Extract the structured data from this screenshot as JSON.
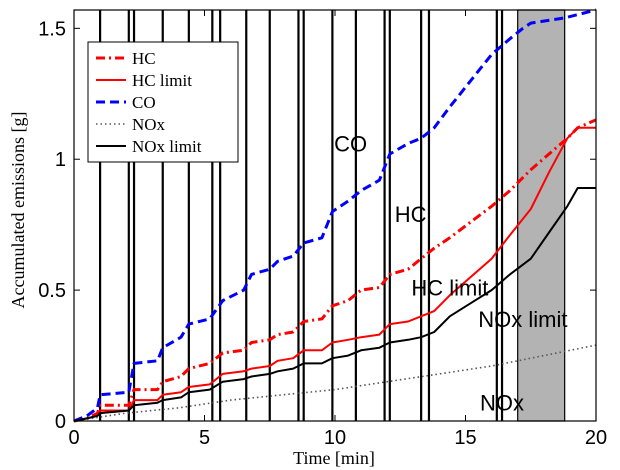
{
  "chart_data": {
    "type": "line",
    "xlabel": "Time [min]",
    "ylabel": "Accumulated emissions [g]",
    "xlim": [
      0,
      20
    ],
    "ylim": [
      0,
      1.57
    ],
    "xticks": [
      0,
      5,
      10,
      15,
      20
    ],
    "yticks": [
      0,
      0.5,
      1,
      1.5
    ],
    "xtick_labels": [
      "0",
      "5",
      "10",
      "15",
      "20"
    ],
    "ytick_labels": [
      "0",
      "0.5",
      "1",
      "1.5"
    ],
    "grid": false,
    "legend_position": "top-left",
    "series": [
      {
        "name": "HC",
        "color": "#ff0000",
        "style": "dashdot",
        "points": [
          [
            0,
            0
          ],
          [
            0.5,
            0.01
          ],
          [
            0.9,
            0.03
          ],
          [
            1.0,
            0.06
          ],
          [
            2.1,
            0.06
          ],
          [
            2.3,
            0.12
          ],
          [
            3.2,
            0.12
          ],
          [
            3.4,
            0.15
          ],
          [
            4.1,
            0.17
          ],
          [
            4.4,
            0.2
          ],
          [
            5.2,
            0.22
          ],
          [
            5.7,
            0.26
          ],
          [
            6.5,
            0.27
          ],
          [
            6.8,
            0.3
          ],
          [
            7.5,
            0.31
          ],
          [
            7.8,
            0.33
          ],
          [
            8.4,
            0.34
          ],
          [
            8.8,
            0.38
          ],
          [
            9.5,
            0.39
          ],
          [
            9.9,
            0.44
          ],
          [
            10.5,
            0.46
          ],
          [
            11.0,
            0.5
          ],
          [
            11.7,
            0.51
          ],
          [
            12.1,
            0.56
          ],
          [
            12.8,
            0.58
          ],
          [
            13.3,
            0.62
          ],
          [
            13.8,
            0.66
          ],
          [
            14.4,
            0.7
          ],
          [
            15.2,
            0.76
          ],
          [
            16.0,
            0.82
          ],
          [
            16.7,
            0.88
          ],
          [
            17.5,
            0.96
          ],
          [
            18.2,
            1.02
          ],
          [
            18.9,
            1.08
          ],
          [
            19.3,
            1.12
          ],
          [
            20,
            1.15
          ]
        ]
      },
      {
        "name": "HC limit",
        "color": "#ff0000",
        "style": "solid",
        "points": [
          [
            0,
            0
          ],
          [
            0.5,
            0.01
          ],
          [
            0.9,
            0.02
          ],
          [
            1.0,
            0.04
          ],
          [
            2.1,
            0.04
          ],
          [
            2.3,
            0.08
          ],
          [
            3.2,
            0.08
          ],
          [
            3.4,
            0.1
          ],
          [
            4.1,
            0.11
          ],
          [
            4.4,
            0.13
          ],
          [
            5.2,
            0.14
          ],
          [
            5.7,
            0.18
          ],
          [
            6.5,
            0.19
          ],
          [
            6.8,
            0.2
          ],
          [
            7.5,
            0.21
          ],
          [
            7.8,
            0.23
          ],
          [
            8.4,
            0.24
          ],
          [
            8.8,
            0.27
          ],
          [
            9.5,
            0.27
          ],
          [
            9.9,
            0.3
          ],
          [
            10.5,
            0.31
          ],
          [
            11.0,
            0.32
          ],
          [
            11.7,
            0.33
          ],
          [
            12.1,
            0.37
          ],
          [
            12.8,
            0.38
          ],
          [
            13.3,
            0.4
          ],
          [
            13.8,
            0.42
          ],
          [
            14.4,
            0.48
          ],
          [
            15.2,
            0.55
          ],
          [
            16.0,
            0.62
          ],
          [
            16.7,
            0.71
          ],
          [
            17.5,
            0.81
          ],
          [
            18.2,
            0.95
          ],
          [
            18.9,
            1.08
          ],
          [
            19.3,
            1.12
          ],
          [
            20,
            1.12
          ]
        ]
      },
      {
        "name": "CO",
        "color": "#0000ff",
        "style": "dashed",
        "points": [
          [
            0,
            0
          ],
          [
            0.5,
            0.02
          ],
          [
            0.9,
            0.05
          ],
          [
            1.0,
            0.1
          ],
          [
            2.1,
            0.11
          ],
          [
            2.3,
            0.22
          ],
          [
            3.2,
            0.23
          ],
          [
            3.4,
            0.28
          ],
          [
            4.1,
            0.32
          ],
          [
            4.4,
            0.37
          ],
          [
            5.2,
            0.39
          ],
          [
            5.7,
            0.46
          ],
          [
            6.5,
            0.5
          ],
          [
            6.8,
            0.56
          ],
          [
            7.5,
            0.58
          ],
          [
            7.8,
            0.61
          ],
          [
            8.4,
            0.63
          ],
          [
            8.8,
            0.68
          ],
          [
            9.5,
            0.7
          ],
          [
            9.9,
            0.8
          ],
          [
            10.5,
            0.84
          ],
          [
            11.0,
            0.88
          ],
          [
            11.7,
            0.92
          ],
          [
            12.1,
            1.02
          ],
          [
            12.8,
            1.06
          ],
          [
            13.3,
            1.08
          ],
          [
            13.8,
            1.12
          ],
          [
            14.4,
            1.2
          ],
          [
            15.2,
            1.3
          ],
          [
            16.0,
            1.4
          ],
          [
            16.7,
            1.46
          ],
          [
            17.2,
            1.5
          ],
          [
            17.5,
            1.52
          ],
          [
            18.8,
            1.54
          ],
          [
            20,
            1.57
          ]
        ]
      },
      {
        "name": "NOx",
        "color": "#555555",
        "style": "dotted",
        "points": [
          [
            0,
            0
          ],
          [
            2,
            0.03
          ],
          [
            4,
            0.05
          ],
          [
            6,
            0.08
          ],
          [
            8,
            0.1
          ],
          [
            10,
            0.12
          ],
          [
            12,
            0.15
          ],
          [
            14,
            0.18
          ],
          [
            16,
            0.21
          ],
          [
            18,
            0.25
          ],
          [
            20,
            0.29
          ]
        ]
      },
      {
        "name": "NOx limit",
        "color": "#000000",
        "style": "solid",
        "points": [
          [
            0,
            0
          ],
          [
            0.5,
            0.01
          ],
          [
            0.9,
            0.02
          ],
          [
            1.0,
            0.03
          ],
          [
            2.1,
            0.04
          ],
          [
            2.3,
            0.06
          ],
          [
            3.2,
            0.07
          ],
          [
            3.4,
            0.08
          ],
          [
            4.1,
            0.09
          ],
          [
            4.4,
            0.11
          ],
          [
            5.2,
            0.12
          ],
          [
            5.7,
            0.15
          ],
          [
            6.5,
            0.16
          ],
          [
            6.8,
            0.17
          ],
          [
            7.5,
            0.18
          ],
          [
            7.8,
            0.19
          ],
          [
            8.4,
            0.2
          ],
          [
            8.8,
            0.22
          ],
          [
            9.5,
            0.22
          ],
          [
            9.9,
            0.24
          ],
          [
            10.5,
            0.25
          ],
          [
            11.0,
            0.27
          ],
          [
            11.7,
            0.28
          ],
          [
            12.1,
            0.3
          ],
          [
            12.8,
            0.31
          ],
          [
            13.3,
            0.32
          ],
          [
            13.8,
            0.34
          ],
          [
            14.4,
            0.4
          ],
          [
            15.2,
            0.45
          ],
          [
            16.0,
            0.5
          ],
          [
            16.7,
            0.56
          ],
          [
            17.5,
            0.62
          ],
          [
            18.2,
            0.72
          ],
          [
            18.9,
            0.82
          ],
          [
            19.3,
            0.89
          ],
          [
            20,
            0.89
          ]
        ]
      }
    ],
    "vertical_lines": [
      1.0,
      2.1,
      2.3,
      3.4,
      4.4,
      5.3,
      5.6,
      6.6,
      7.5,
      8.6,
      8.8,
      9.9,
      10.8,
      11.9,
      12.1,
      13.3,
      13.6,
      16.2,
      16.4
    ],
    "shaded_regions": [
      [
        17.0,
        18.8
      ]
    ],
    "annotations": [
      {
        "text": "CO",
        "x": 10.6,
        "y": 1.03
      },
      {
        "text": "HC",
        "x": 12.9,
        "y": 0.76
      },
      {
        "text": "HC limit",
        "x": 14.4,
        "y": 0.48
      },
      {
        "text": "NOx limit",
        "x": 17.2,
        "y": 0.36
      },
      {
        "text": "NOx",
        "x": 16.4,
        "y": 0.04
      }
    ]
  }
}
